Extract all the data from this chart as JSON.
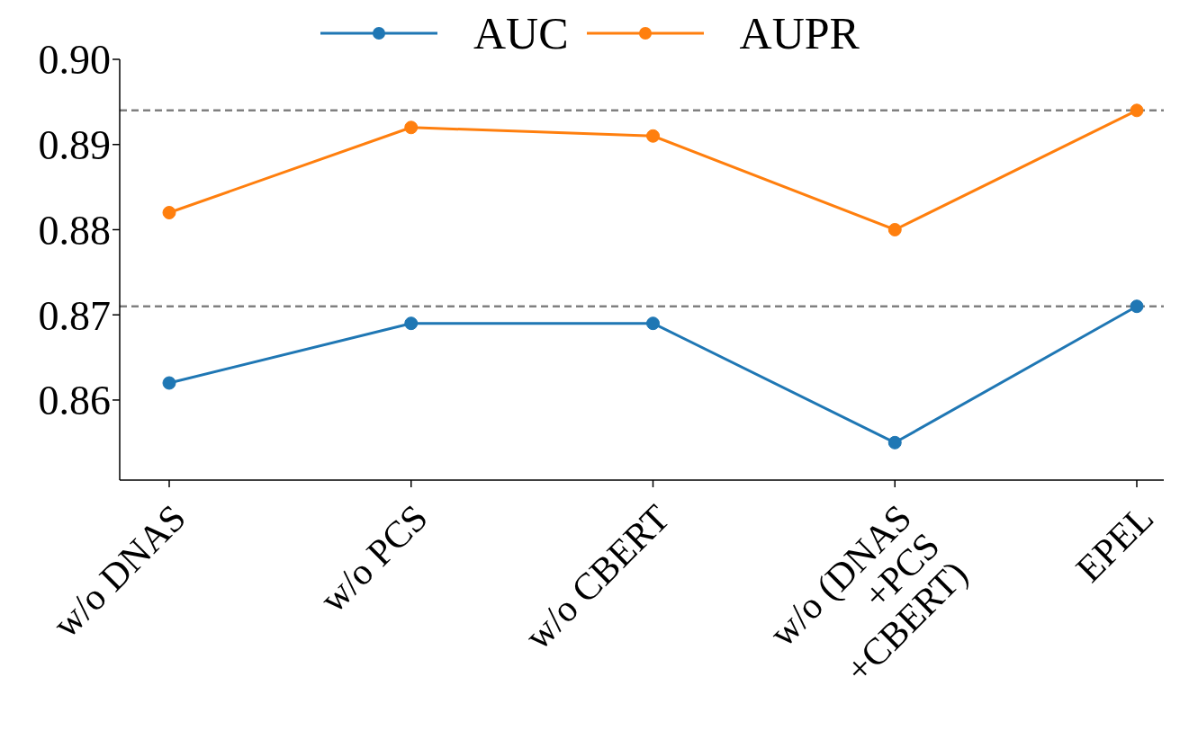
{
  "chart_data": {
    "type": "line",
    "categories": [
      "w/o DNAS",
      "w/o PCS",
      "w/o CBERT",
      "w/o (DNAS\n+PCS\n+CBERT)",
      "EPEL"
    ],
    "series": [
      {
        "name": "AUC",
        "color": "#1f77b4",
        "values": [
          0.862,
          0.869,
          0.869,
          0.855,
          0.871
        ]
      },
      {
        "name": "AUPR",
        "color": "#ff7f0e",
        "values": [
          0.882,
          0.892,
          0.891,
          0.88,
          0.894
        ]
      }
    ],
    "ylim": [
      0.8506,
      0.9
    ],
    "yticks": [
      0.86,
      0.87,
      0.88,
      0.89,
      {
        "value": 0.9,
        "label": "0.90"
      }
    ],
    "ref_lines": [
      {
        "axis": "y",
        "value": 0.894,
        "color": "#808080",
        "line_style": "dashed"
      },
      {
        "axis": "y",
        "value": 0.871,
        "color": "#808080",
        "line_style": "dashed"
      }
    ],
    "grid": false,
    "legend": "top",
    "marker": "circle",
    "line_style": "solid"
  }
}
